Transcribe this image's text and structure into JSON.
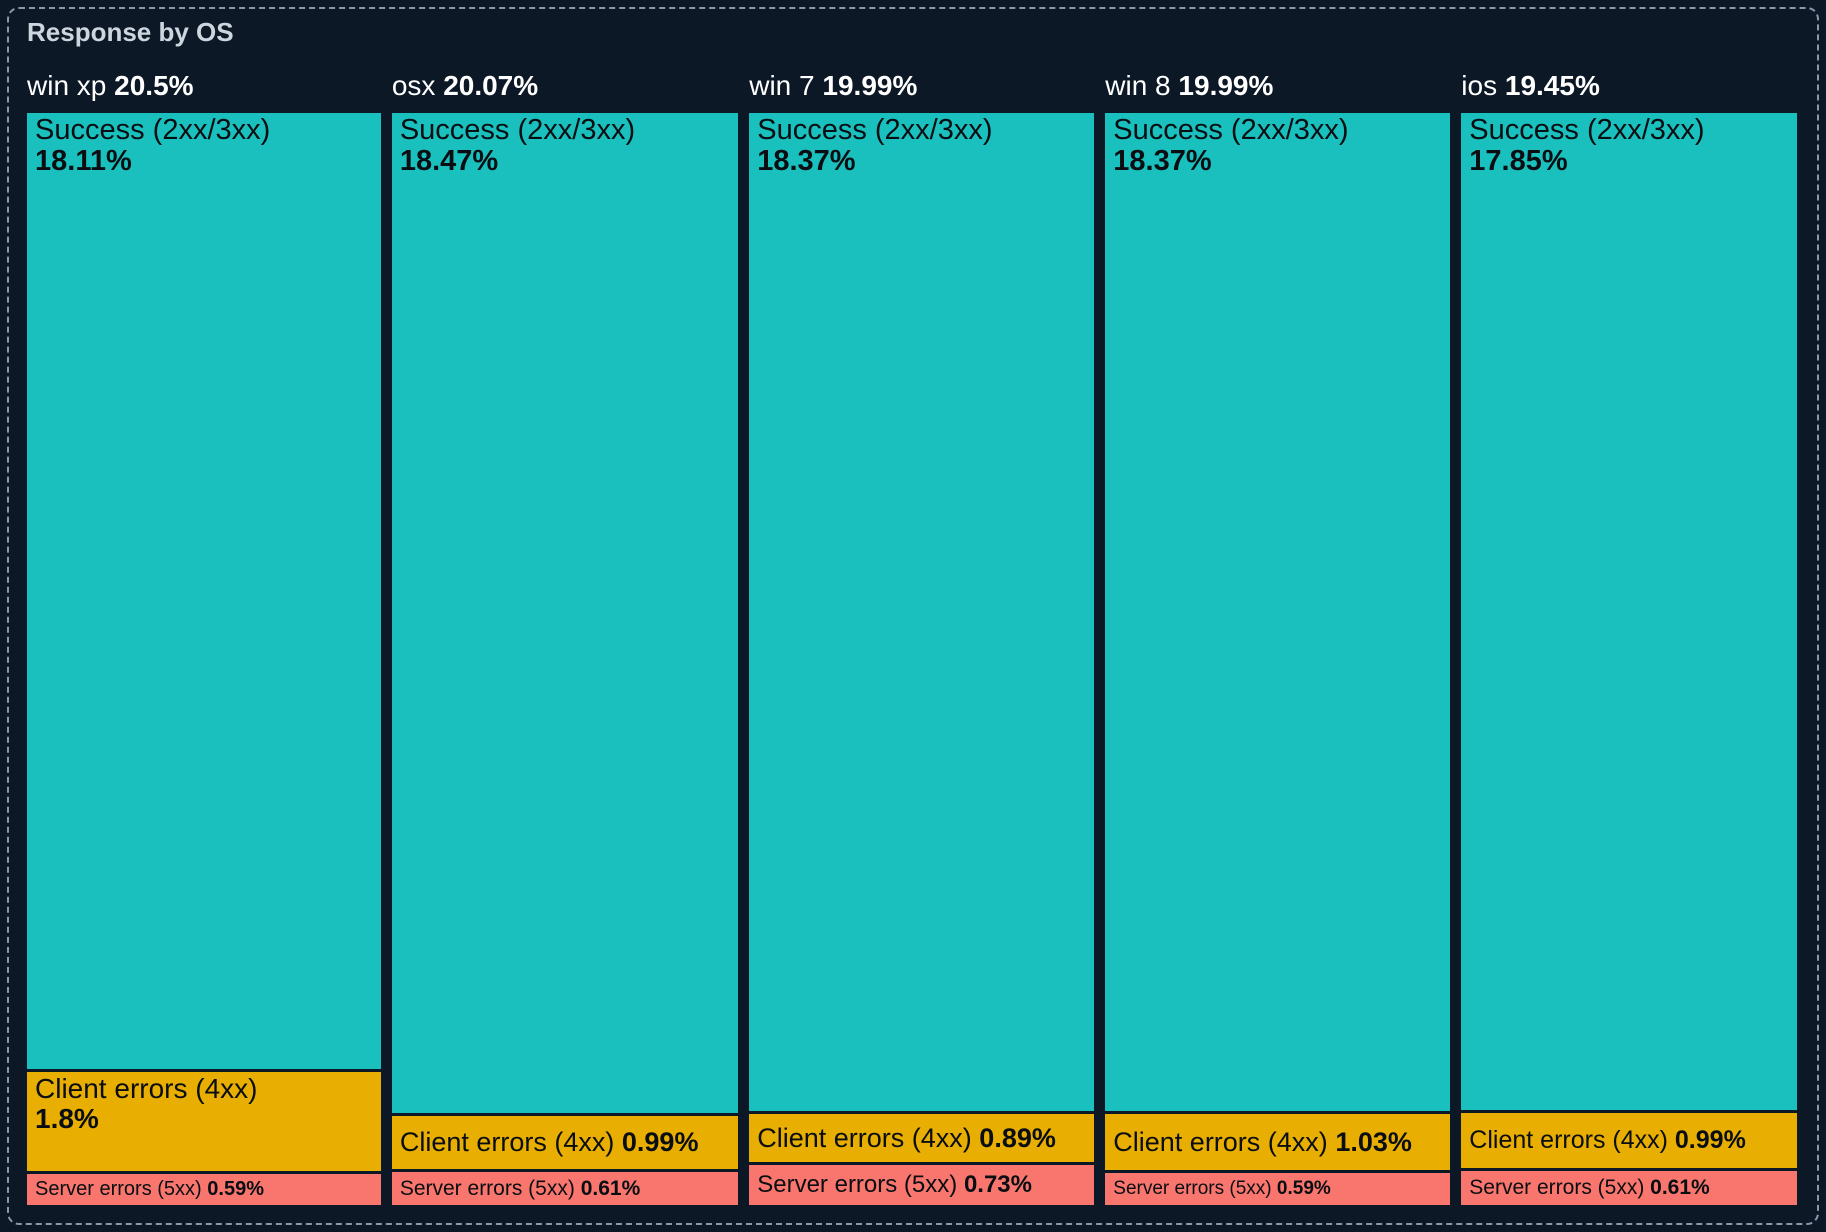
{
  "panel": {
    "title": "Response by OS"
  },
  "colors": {
    "background": "#0d1826",
    "panel_border": "#8699ad",
    "title_text": "#cdd5de",
    "header_text": "#ffffff",
    "tile_text": "#0a0e12",
    "success": "#19c0bd",
    "client_errors": "#e8ae02",
    "server_errors": "#f8766d"
  },
  "chart_data": {
    "type": "bar",
    "variant": "marimekko-treemap: one 100%-stacked column per OS, column width proportional to OS share",
    "title": "Response by OS",
    "value_unit": "%",
    "legend": [
      "Success (2xx/3xx)",
      "Client errors (4xx)",
      "Server errors (5xx)"
    ],
    "legend_position": "none (labels drawn inside tiles)",
    "grid": false,
    "columns": [
      {
        "os": "win xp",
        "share": 20.5,
        "share_label": "20.5%",
        "segments": [
          {
            "key": "success",
            "name": "Success (2xx/3xx)",
            "value": 18.11,
            "value_label": "18.11%",
            "two_line": true,
            "font_px": 29
          },
          {
            "key": "client_errors",
            "name": "Client errors (4xx)",
            "value": 1.8,
            "value_label": "1.8%",
            "two_line": true,
            "font_px": 28
          },
          {
            "key": "server_errors",
            "name": "Server errors (5xx)",
            "value": 0.59,
            "value_label": "0.59%",
            "two_line": false,
            "font_px": 20
          }
        ]
      },
      {
        "os": "osx",
        "share": 20.07,
        "share_label": "20.07%",
        "segments": [
          {
            "key": "success",
            "name": "Success (2xx/3xx)",
            "value": 18.47,
            "value_label": "18.47%",
            "two_line": true,
            "font_px": 29
          },
          {
            "key": "client_errors",
            "name": "Client errors (4xx)",
            "value": 0.99,
            "value_label": "0.99%",
            "two_line": false,
            "font_px": 27
          },
          {
            "key": "server_errors",
            "name": "Server errors (5xx)",
            "value": 0.61,
            "value_label": "0.61%",
            "two_line": false,
            "font_px": 21
          }
        ]
      },
      {
        "os": "win 7",
        "share": 19.99,
        "share_label": "19.99%",
        "segments": [
          {
            "key": "success",
            "name": "Success (2xx/3xx)",
            "value": 18.37,
            "value_label": "18.37%",
            "two_line": true,
            "font_px": 29
          },
          {
            "key": "client_errors",
            "name": "Client errors (4xx)",
            "value": 0.89,
            "value_label": "0.89%",
            "two_line": false,
            "font_px": 27
          },
          {
            "key": "server_errors",
            "name": "Server errors (5xx)",
            "value": 0.73,
            "value_label": "0.73%",
            "two_line": false,
            "font_px": 24
          }
        ]
      },
      {
        "os": "win 8",
        "share": 19.99,
        "share_label": "19.99%",
        "segments": [
          {
            "key": "success",
            "name": "Success (2xx/3xx)",
            "value": 18.37,
            "value_label": "18.37%",
            "two_line": true,
            "font_px": 29
          },
          {
            "key": "client_errors",
            "name": "Client errors (4xx)",
            "value": 1.03,
            "value_label": "1.03%",
            "two_line": false,
            "font_px": 27
          },
          {
            "key": "server_errors",
            "name": "Server errors (5xx)",
            "value": 0.59,
            "value_label": "0.59%",
            "two_line": false,
            "font_px": 19
          }
        ]
      },
      {
        "os": "ios",
        "share": 19.45,
        "share_label": "19.45%",
        "segments": [
          {
            "key": "success",
            "name": "Success (2xx/3xx)",
            "value": 17.85,
            "value_label": "17.85%",
            "two_line": true,
            "font_px": 29
          },
          {
            "key": "client_errors",
            "name": "Client errors (4xx)",
            "value": 0.99,
            "value_label": "0.99%",
            "two_line": false,
            "font_px": 25
          },
          {
            "key": "server_errors",
            "name": "Server errors (5xx)",
            "value": 0.61,
            "value_label": "0.61%",
            "two_line": false,
            "font_px": 21
          }
        ]
      }
    ]
  }
}
